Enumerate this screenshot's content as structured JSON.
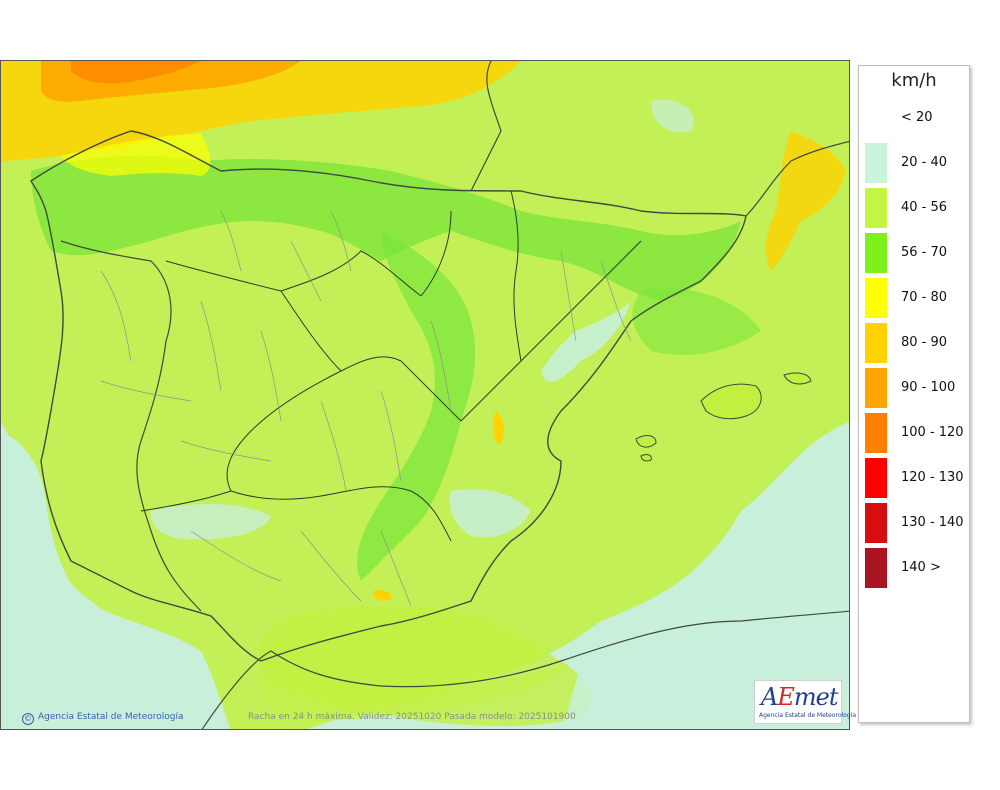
{
  "map": {
    "caption": "Racha en 24 h máxima. Validez: 20251020 Pasada modelo: 2025101900",
    "credit": "Agencia Estatal de Meteorología",
    "logo": {
      "mark_a": "A",
      "mark_e": "E",
      "mark_rest": "met",
      "subtitle": "Agencia Estatal de Meteorología"
    }
  },
  "legend": {
    "unit": "km/h",
    "classes": [
      {
        "label": "< 20",
        "color": "#ffffff"
      },
      {
        "label": "20 - 40",
        "color": "#c8f4da"
      },
      {
        "label": "40 - 56",
        "color": "#c3f542"
      },
      {
        "label": "56 - 70",
        "color": "#7ef01c"
      },
      {
        "label": "70 - 80",
        "color": "#ffff00"
      },
      {
        "label": "80 - 90",
        "color": "#ffd200"
      },
      {
        "label": "90 - 100",
        "color": "#ffa500"
      },
      {
        "label": "100 - 120",
        "color": "#ff8000"
      },
      {
        "label": "120 - 130",
        "color": "#ff0000"
      },
      {
        "label": "130 - 140",
        "color": "#d50f0f"
      },
      {
        "label": "140 >",
        "color": "#a81420"
      }
    ]
  }
}
